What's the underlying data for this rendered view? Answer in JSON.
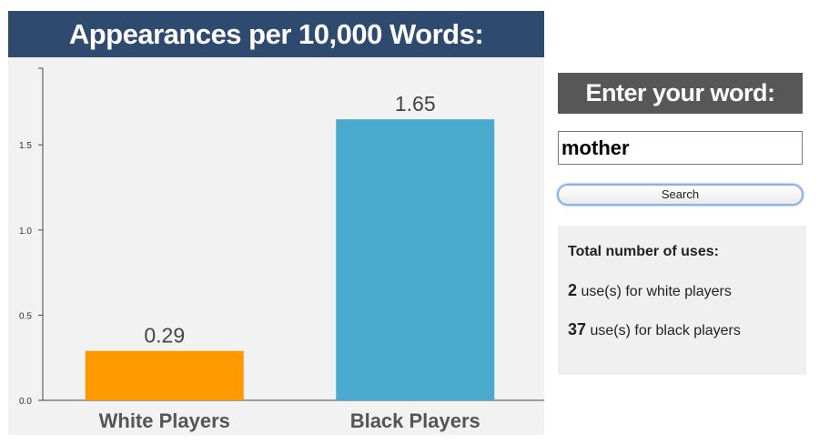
{
  "chart_header": "Appearances per 10,000 Words:",
  "chart_data": {
    "type": "bar",
    "categories": [
      "White Players",
      "Black Players"
    ],
    "values": [
      0.29,
      1.65
    ],
    "value_labels": [
      "0.29",
      "1.65"
    ],
    "colors": [
      "#ff9900",
      "#4aaacd"
    ],
    "yticks": [
      "0.0",
      "0.5",
      "1.0",
      "1.5"
    ],
    "ylim": [
      0,
      1.95
    ],
    "grid": false,
    "title": "",
    "xlabel": "",
    "ylabel": ""
  },
  "panel": {
    "title": "Enter your word:",
    "input_value": "mother",
    "search_label": "Search",
    "stats_heading": "Total number of uses:",
    "white_count": "2",
    "white_text": " use(s) for white players",
    "black_count": "37",
    "black_text": " use(s) for black players"
  },
  "colors": {
    "header_bg": "#2e4a6e",
    "panel_title_bg": "#575757",
    "chart_bg": "#f2f2f2"
  }
}
